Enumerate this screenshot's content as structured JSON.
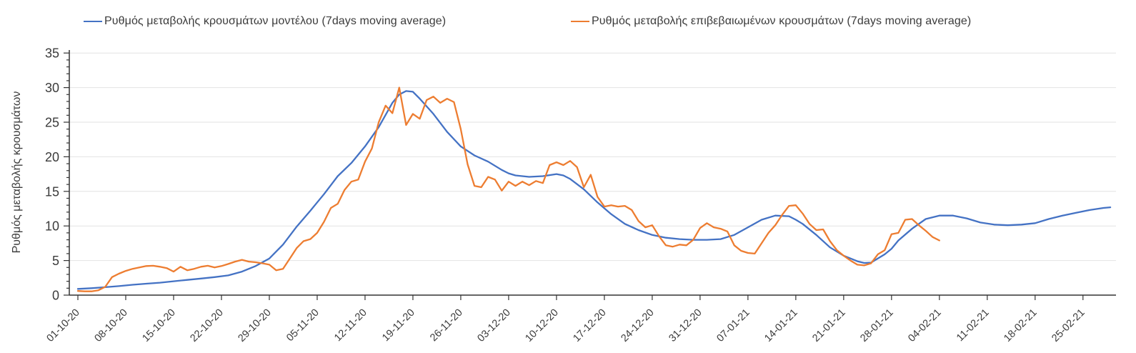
{
  "legend": [
    {
      "label": "Ρυθμός μεταβολής κρουσμάτων μοντέλου (7days moving average)",
      "color": "#4472c4"
    },
    {
      "label": "Ρυθμός μεταβολής επιβεβαιωμένων κρουσμάτων (7days moving average)",
      "color": "#ed7d31"
    }
  ],
  "y_axis": {
    "title": "Ρυθμός μεταβολής κρουσμάτων",
    "min": 0,
    "max": 35,
    "major_step": 5,
    "minor_step": 1,
    "tick_labels": [
      "0",
      "5",
      "10",
      "15",
      "20",
      "25",
      "30",
      "35"
    ]
  },
  "x_axis": {
    "days_per_tick": 7,
    "tick_labels": [
      "01-10-20",
      "08-10-20",
      "15-10-20",
      "22-10-20",
      "29-10-20",
      "05-11-20",
      "12-11-20",
      "19-11-20",
      "26-11-20",
      "03-12-20",
      "10-12-20",
      "17-12-20",
      "24-12-20",
      "31-12-20",
      "07-01-21",
      "14-01-21",
      "21-01-21",
      "28-01-21",
      "04-02-21",
      "11-02-21",
      "18-02-21",
      "25-02-21"
    ]
  },
  "chart_data": {
    "type": "line",
    "title": "",
    "xlabel": "",
    "ylabel": "Ρυθμός μεταβολής κρουσμάτων",
    "ylim": [
      0,
      35
    ],
    "x_unit": "days since first tick (01-10-20), 7 days between ticks",
    "grid": "horizontal",
    "legend_position": "top",
    "series": [
      {
        "name": "Ρυθμός μεταβολής κρουσμάτων μοντέλου (7days moving average)",
        "color": "#4472c4",
        "points": [
          [
            0,
            0.9
          ],
          [
            2,
            1.0
          ],
          [
            4,
            1.15
          ],
          [
            6,
            1.3
          ],
          [
            8,
            1.5
          ],
          [
            10,
            1.65
          ],
          [
            12,
            1.8
          ],
          [
            14,
            2.0
          ],
          [
            16,
            2.2
          ],
          [
            18,
            2.4
          ],
          [
            20,
            2.6
          ],
          [
            22,
            2.85
          ],
          [
            24,
            3.4
          ],
          [
            26,
            4.2
          ],
          [
            28,
            5.3
          ],
          [
            30,
            7.3
          ],
          [
            32,
            9.9
          ],
          [
            34,
            12.2
          ],
          [
            35,
            13.4
          ],
          [
            36,
            14.6
          ],
          [
            38,
            17.2
          ],
          [
            40,
            19.1
          ],
          [
            42,
            21.5
          ],
          [
            44,
            24.3
          ],
          [
            46,
            27.8
          ],
          [
            47,
            29.0
          ],
          [
            48,
            29.5
          ],
          [
            49,
            29.4
          ],
          [
            50,
            28.4
          ],
          [
            52,
            26.2
          ],
          [
            54,
            23.6
          ],
          [
            56,
            21.5
          ],
          [
            58,
            20.2
          ],
          [
            60,
            19.3
          ],
          [
            62,
            18.1
          ],
          [
            63,
            17.6
          ],
          [
            64,
            17.3
          ],
          [
            66,
            17.1
          ],
          [
            68,
            17.2
          ],
          [
            70,
            17.5
          ],
          [
            71,
            17.3
          ],
          [
            72,
            16.8
          ],
          [
            74,
            15.3
          ],
          [
            76,
            13.4
          ],
          [
            78,
            11.7
          ],
          [
            80,
            10.3
          ],
          [
            82,
            9.4
          ],
          [
            84,
            8.7
          ],
          [
            86,
            8.3
          ],
          [
            88,
            8.1
          ],
          [
            90,
            8.0
          ],
          [
            92,
            8.0
          ],
          [
            94,
            8.1
          ],
          [
            96,
            8.7
          ],
          [
            98,
            9.8
          ],
          [
            100,
            10.9
          ],
          [
            102,
            11.5
          ],
          [
            104,
            11.4
          ],
          [
            105,
            10.9
          ],
          [
            106,
            10.3
          ],
          [
            108,
            8.7
          ],
          [
            110,
            6.9
          ],
          [
            112,
            5.7
          ],
          [
            114,
            4.9
          ],
          [
            115,
            4.65
          ],
          [
            116,
            4.7
          ],
          [
            118,
            5.9
          ],
          [
            119,
            6.7
          ],
          [
            120,
            7.9
          ],
          [
            122,
            9.6
          ],
          [
            124,
            11.0
          ],
          [
            126,
            11.5
          ],
          [
            128,
            11.5
          ],
          [
            130,
            11.1
          ],
          [
            132,
            10.5
          ],
          [
            134,
            10.2
          ],
          [
            136,
            10.1
          ],
          [
            138,
            10.2
          ],
          [
            140,
            10.4
          ],
          [
            142,
            11.0
          ],
          [
            144,
            11.5
          ],
          [
            146,
            11.9
          ],
          [
            148,
            12.3
          ],
          [
            150,
            12.6
          ],
          [
            151,
            12.7
          ]
        ]
      },
      {
        "name": "Ρυθμός μεταβολής επιβεβαιωμένων κρουσμάτων (7days moving average)",
        "color": "#ed7d31",
        "points": [
          [
            0,
            0.6
          ],
          [
            1,
            0.55
          ],
          [
            2,
            0.55
          ],
          [
            3,
            0.7
          ],
          [
            4,
            1.2
          ],
          [
            5,
            2.6
          ],
          [
            6,
            3.1
          ],
          [
            7,
            3.5
          ],
          [
            8,
            3.8
          ],
          [
            9,
            4.0
          ],
          [
            10,
            4.2
          ],
          [
            11,
            4.25
          ],
          [
            12,
            4.1
          ],
          [
            13,
            3.9
          ],
          [
            14,
            3.4
          ],
          [
            15,
            4.1
          ],
          [
            16,
            3.6
          ],
          [
            17,
            3.8
          ],
          [
            18,
            4.1
          ],
          [
            19,
            4.25
          ],
          [
            20,
            4.0
          ],
          [
            21,
            4.2
          ],
          [
            22,
            4.5
          ],
          [
            23,
            4.85
          ],
          [
            24,
            5.1
          ],
          [
            25,
            4.85
          ],
          [
            26,
            4.75
          ],
          [
            27,
            4.6
          ],
          [
            28,
            4.4
          ],
          [
            29,
            3.6
          ],
          [
            30,
            3.8
          ],
          [
            31,
            5.3
          ],
          [
            32,
            6.8
          ],
          [
            33,
            7.8
          ],
          [
            34,
            8.1
          ],
          [
            35,
            9.0
          ],
          [
            36,
            10.6
          ],
          [
            37,
            12.6
          ],
          [
            38,
            13.2
          ],
          [
            39,
            15.2
          ],
          [
            40,
            16.4
          ],
          [
            41,
            16.7
          ],
          [
            42,
            19.3
          ],
          [
            43,
            21.2
          ],
          [
            44,
            25.0
          ],
          [
            45,
            27.4
          ],
          [
            46,
            26.3
          ],
          [
            47,
            30.0
          ],
          [
            48,
            24.6
          ],
          [
            49,
            26.2
          ],
          [
            50,
            25.5
          ],
          [
            51,
            28.2
          ],
          [
            52,
            28.7
          ],
          [
            53,
            27.8
          ],
          [
            54,
            28.4
          ],
          [
            55,
            27.9
          ],
          [
            56,
            24.0
          ],
          [
            57,
            18.9
          ],
          [
            58,
            15.8
          ],
          [
            59,
            15.6
          ],
          [
            60,
            17.1
          ],
          [
            61,
            16.7
          ],
          [
            62,
            15.1
          ],
          [
            63,
            16.4
          ],
          [
            64,
            15.8
          ],
          [
            65,
            16.4
          ],
          [
            66,
            15.9
          ],
          [
            67,
            16.5
          ],
          [
            68,
            16.2
          ],
          [
            69,
            18.8
          ],
          [
            70,
            19.2
          ],
          [
            71,
            18.8
          ],
          [
            72,
            19.4
          ],
          [
            73,
            18.5
          ],
          [
            74,
            15.6
          ],
          [
            75,
            17.4
          ],
          [
            76,
            14.2
          ],
          [
            77,
            12.8
          ],
          [
            78,
            13.0
          ],
          [
            79,
            12.8
          ],
          [
            80,
            12.9
          ],
          [
            81,
            12.3
          ],
          [
            82,
            10.7
          ],
          [
            83,
            9.8
          ],
          [
            84,
            10.1
          ],
          [
            85,
            8.5
          ],
          [
            86,
            7.2
          ],
          [
            87,
            7.0
          ],
          [
            88,
            7.3
          ],
          [
            89,
            7.2
          ],
          [
            90,
            8.0
          ],
          [
            91,
            9.7
          ],
          [
            92,
            10.4
          ],
          [
            93,
            9.8
          ],
          [
            94,
            9.6
          ],
          [
            95,
            9.2
          ],
          [
            96,
            7.2
          ],
          [
            97,
            6.4
          ],
          [
            98,
            6.1
          ],
          [
            99,
            6.0
          ],
          [
            100,
            7.5
          ],
          [
            101,
            9.0
          ],
          [
            102,
            10.1
          ],
          [
            103,
            11.6
          ],
          [
            104,
            12.9
          ],
          [
            105,
            13.0
          ],
          [
            106,
            11.8
          ],
          [
            107,
            10.3
          ],
          [
            108,
            9.4
          ],
          [
            109,
            9.5
          ],
          [
            110,
            7.8
          ],
          [
            111,
            6.5
          ],
          [
            112,
            5.7
          ],
          [
            113,
            5.0
          ],
          [
            114,
            4.4
          ],
          [
            115,
            4.3
          ],
          [
            116,
            4.6
          ],
          [
            117,
            5.9
          ],
          [
            118,
            6.5
          ],
          [
            119,
            8.8
          ],
          [
            120,
            9.0
          ],
          [
            121,
            10.9
          ],
          [
            122,
            11.0
          ],
          [
            123,
            10.1
          ],
          [
            124,
            9.3
          ],
          [
            125,
            8.4
          ],
          [
            126,
            7.9
          ]
        ]
      }
    ]
  },
  "colors": {
    "axis": "#333333",
    "grid": "#e2e2e2",
    "tick_text": "#3b3b3b"
  }
}
